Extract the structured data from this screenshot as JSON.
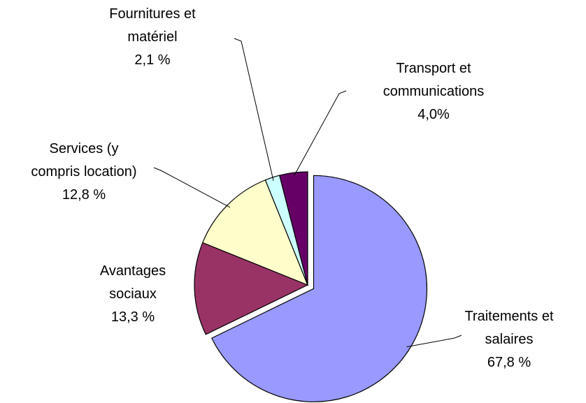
{
  "chart_data": {
    "type": "pie",
    "categories": [
      "Traitements et salaires",
      "Avantages sociaux",
      "Services (y compris location)",
      "Fournitures et matériel",
      "Transport et communications"
    ],
    "values": [
      67.8,
      13.3,
      12.8,
      2.1,
      4.0
    ],
    "value_labels": [
      "67,8 %",
      "13,3 %",
      "12,8 %",
      "2,1 %",
      "4,0%"
    ],
    "colors": [
      "#9999ff",
      "#993366",
      "#ffffcc",
      "#ccffff",
      "#660066"
    ]
  }
}
